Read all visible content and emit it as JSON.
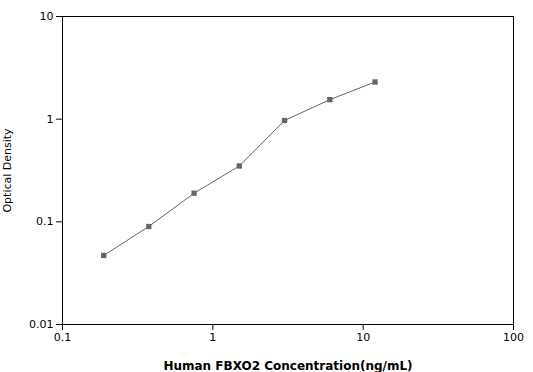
{
  "chart_data": {
    "type": "line",
    "x": [
      0.188,
      0.375,
      0.75,
      1.5,
      3.0,
      6.0,
      12.0
    ],
    "values": [
      0.047,
      0.09,
      0.19,
      0.35,
      0.97,
      1.55,
      2.3
    ],
    "xlabel": "Human FBXO2 Concentration(ng/mL)",
    "ylabel": "Optical Density",
    "xlim": [
      0.1,
      100
    ],
    "ylim": [
      0.01,
      10
    ],
    "xticks": [
      0.1,
      1,
      10,
      100
    ],
    "yticks": [
      0.01,
      0.1,
      1,
      10
    ],
    "log": true,
    "grid": false,
    "color": "#666666",
    "marker": "square"
  }
}
